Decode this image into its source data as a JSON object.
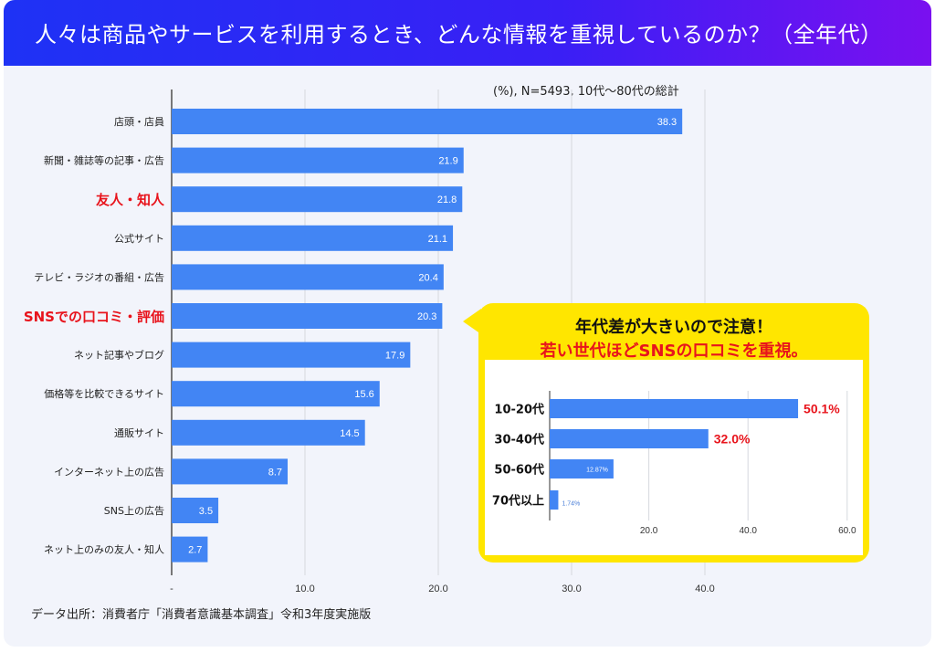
{
  "header": {
    "title": "人々は商品やサービスを利用するとき、どんな情報を重視しているのか？（全年代）"
  },
  "note": "(%), N=5493, 10代～80代の総計",
  "source": "データ出所：消費者庁「消費者意識基本調査」令和3年度実施版",
  "colors": {
    "bar": "#4285f4",
    "highlight": "#e8141c",
    "callout": "#ffe600"
  },
  "chart_data": [
    {
      "type": "bar",
      "orientation": "horizontal",
      "categories": [
        "店頭・店員",
        "新聞・雑誌等の記事・広告",
        "友人・知人",
        "公式サイト",
        "テレビ・ラジオの番組・広告",
        "SNSでの口コミ・評価",
        "ネット記事やブログ",
        "価格等を比較できるサイト",
        "通販サイト",
        "インターネット上の広告",
        "SNS上の広告",
        "ネット上のみの友人・知人"
      ],
      "highlighted": [
        "友人・知人",
        "SNSでの口コミ・評価"
      ],
      "values": [
        38.3,
        21.9,
        21.8,
        21.1,
        20.4,
        20.3,
        17.9,
        15.6,
        14.5,
        8.7,
        3.5,
        2.7
      ],
      "value_labels": [
        "38.3",
        "21.9",
        "21.8",
        "21.1",
        "20.4",
        "20.3",
        "17.9",
        "15.6",
        "14.5",
        "8.7",
        "3.5",
        "2.7"
      ],
      "xlim": [
        0,
        40
      ],
      "xticks": [
        0,
        10,
        20,
        30,
        40
      ],
      "xtick_labels": [
        "-",
        "10.0",
        "20.0",
        "30.0",
        "40.0"
      ],
      "grid": true
    },
    {
      "type": "bar",
      "orientation": "horizontal",
      "title_lines": [
        "年代差が大きいので注意！",
        "若い世代ほどSNSの口コミを重視。"
      ],
      "categories": [
        "10-20代",
        "30-40代",
        "50-60代",
        "70代以上"
      ],
      "values": [
        50.1,
        32.0,
        12.87,
        1.74
      ],
      "value_labels": [
        "50.1%",
        "32.0%",
        "12.87%",
        "1.74%"
      ],
      "highlighted_labels": [
        "50.1%",
        "32.0%"
      ],
      "xlim": [
        0,
        60
      ],
      "xticks": [
        20,
        40,
        60
      ],
      "xtick_labels": [
        "20.0",
        "40.0",
        "60.0"
      ],
      "grid": true
    }
  ]
}
